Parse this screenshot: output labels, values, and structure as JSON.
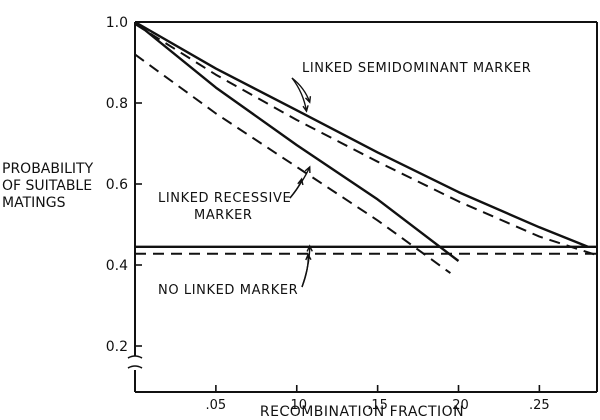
{
  "chart_data": {
    "type": "line",
    "xlabel": "RECOMBINATION FRACTION",
    "ylabel_lines": [
      "PROBABILITY",
      "OF SUITABLE",
      "MATINGS"
    ],
    "xlim": [
      0,
      0.285
    ],
    "ylim": [
      0.15,
      1.02
    ],
    "x_ticks": [
      {
        "value": 0.05,
        "label": ".05"
      },
      {
        "value": 0.1,
        "label": ".10"
      },
      {
        "value": 0.15,
        "label": ".15"
      },
      {
        "value": 0.2,
        "label": ".20"
      },
      {
        "value": 0.25,
        "label": ".25"
      }
    ],
    "y_ticks": [
      {
        "value": 0.2,
        "label": "0.2"
      },
      {
        "value": 0.4,
        "label": "0.4"
      },
      {
        "value": 0.6,
        "label": "0.6"
      },
      {
        "value": 0.8,
        "label": "0.8"
      },
      {
        "value": 1.0,
        "label": "1.0"
      }
    ],
    "axis_break": true,
    "grid": false,
    "series": [
      {
        "style": "solid",
        "group": "semidominant",
        "points": [
          [
            0,
            1.0
          ],
          [
            0.05,
            0.885
          ],
          [
            0.1,
            0.782
          ],
          [
            0.15,
            0.678
          ],
          [
            0.2,
            0.58
          ],
          [
            0.25,
            0.493
          ],
          [
            0.28,
            0.445
          ]
        ]
      },
      {
        "style": "dashed",
        "group": "semidominant",
        "points": [
          [
            0,
            0.995
          ],
          [
            0.05,
            0.87
          ],
          [
            0.1,
            0.758
          ],
          [
            0.15,
            0.655
          ],
          [
            0.2,
            0.557
          ],
          [
            0.25,
            0.47
          ],
          [
            0.285,
            0.425
          ]
        ]
      },
      {
        "style": "solid",
        "group": "recessive",
        "points": [
          [
            0,
            1.0
          ],
          [
            0.05,
            0.838
          ],
          [
            0.1,
            0.696
          ],
          [
            0.15,
            0.562
          ],
          [
            0.2,
            0.41
          ]
        ]
      },
      {
        "style": "dashed",
        "group": "recessive",
        "points": [
          [
            0,
            0.92
          ],
          [
            0.05,
            0.774
          ],
          [
            0.1,
            0.642
          ],
          [
            0.15,
            0.51
          ],
          [
            0.195,
            0.38
          ]
        ]
      },
      {
        "style": "solid",
        "group": "none",
        "points": [
          [
            0,
            0.445
          ],
          [
            0.285,
            0.445
          ]
        ]
      },
      {
        "style": "dashed",
        "group": "none",
        "points": [
          [
            0,
            0.428
          ],
          [
            0.285,
            0.428
          ]
        ]
      }
    ],
    "annotations": [
      {
        "text_lines": [
          "LINKED SEMIDOMINANT MARKER"
        ],
        "arrow_to": [
          [
            0.108,
            0.802
          ],
          [
            0.106,
            0.78
          ]
        ]
      },
      {
        "text_lines": [
          "LINKED RECESSIVE",
          "MARKER"
        ],
        "arrow_to": [
          [
            0.108,
            0.642
          ],
          [
            0.103,
            0.612
          ]
        ]
      },
      {
        "text_lines": [
          "NO LINKED MARKER"
        ],
        "arrow_to": [
          [
            0.108,
            0.447
          ],
          [
            0.107,
            0.426
          ]
        ]
      }
    ]
  }
}
